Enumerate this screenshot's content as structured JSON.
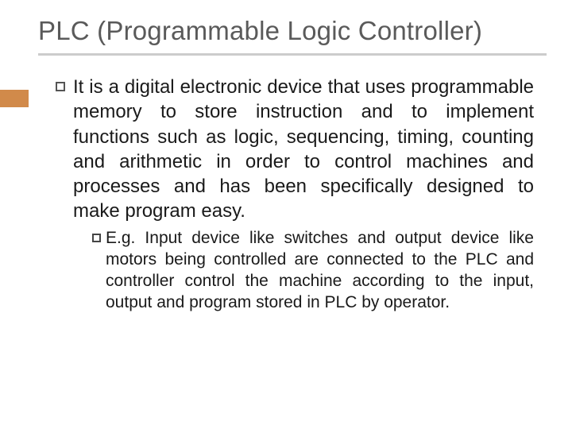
{
  "title": "PLC (Programmable Logic Controller)",
  "accent_color": "#d18a4a",
  "rule_color": "#cccccc",
  "title_color": "#5a5a5a",
  "body_color": "#1a1a1a",
  "background_color": "#ffffff",
  "title_fontsize": 33,
  "body_fontsize": 24,
  "sub_fontsize": 21,
  "bullets": [
    {
      "text": "It is a digital electronic device that uses programmable memory to store instruction and to implement functions such as logic, sequencing, timing, counting and arithmetic in order to control machines and processes and has been specifically designed to make program easy.",
      "sub": [
        {
          "lead": "E.g.",
          "text": " Input device like switches and output device like motors being controlled are connected to the PLC and controller control the machine according to the input, output and program stored in PLC by operator."
        }
      ]
    }
  ]
}
